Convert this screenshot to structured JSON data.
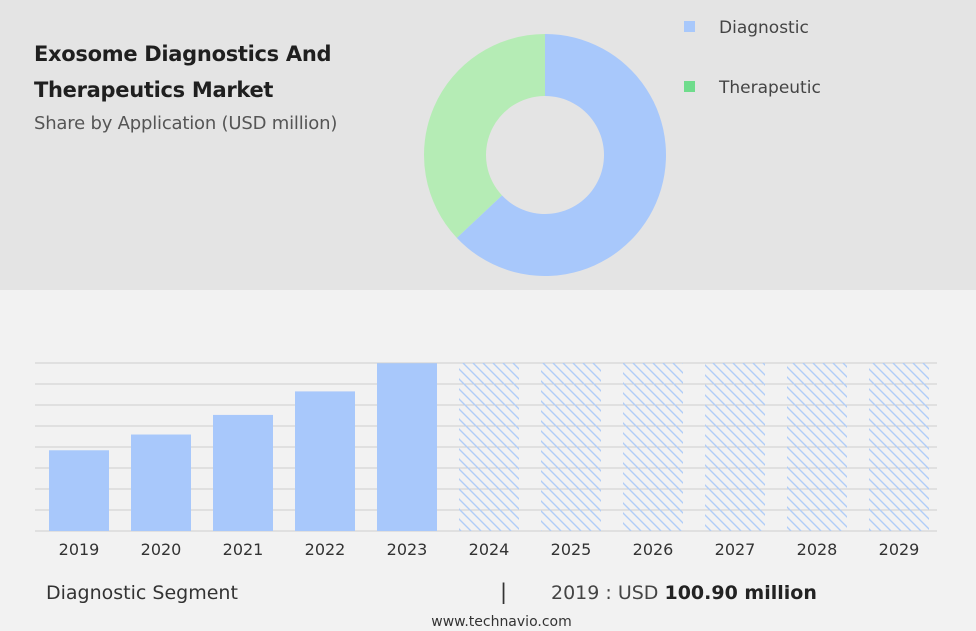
{
  "header": {
    "title": "Exosome Diagnostics And Therapeutics Market",
    "subtitle": "Share by Application (USD million)"
  },
  "colors": {
    "diagnostic": "#a8c8fb",
    "therapeutic": "#b5ecb5",
    "therapeutic_legend": "#6fdc8c",
    "hatch": "#b0cdf8",
    "grid": "#cfcfcf"
  },
  "chart_data": [
    {
      "type": "pie",
      "subtype": "donut",
      "labels": [
        "Diagnostic",
        "Therapeutic"
      ],
      "values": [
        63,
        37
      ],
      "legend": [
        {
          "label": "Diagnostic"
        },
        {
          "label": "Therapeutic"
        }
      ],
      "legend_position": "right"
    },
    {
      "type": "bar",
      "categories": [
        "2019",
        "2020",
        "2021",
        "2022",
        "2023",
        "2024",
        "2025",
        "2026",
        "2027",
        "2028",
        "2029"
      ],
      "values": [
        100.9,
        120.6,
        145.1,
        174.5,
        209.7,
        null,
        null,
        null,
        null,
        null,
        null
      ],
      "forecast_categories": [
        "2024",
        "2025",
        "2026",
        "2027",
        "2028",
        "2029"
      ],
      "forecast_style": "hatched",
      "ylim": [
        0,
        210
      ],
      "grid": true,
      "xlabel": "",
      "ylabel": ""
    }
  ],
  "footer": {
    "segment_label": "Diagnostic Segment",
    "divider": "|",
    "stat_prefix": "2019 : USD ",
    "stat_value": "100.90 million",
    "website": "www.technavio.com"
  }
}
